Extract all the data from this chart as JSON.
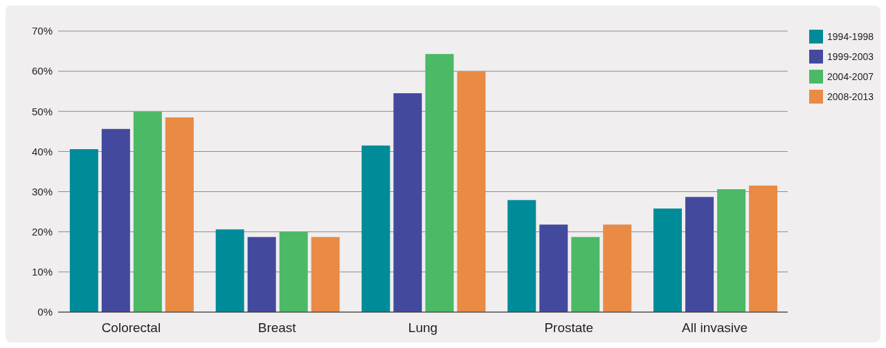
{
  "chart_data": {
    "type": "bar",
    "categories": [
      "Colorectal",
      "Breast",
      "Lung",
      "Prostate",
      "All invasive"
    ],
    "series": [
      {
        "name": "1994-1998",
        "color": "#008b99",
        "values": [
          40.6,
          20.6,
          41.5,
          27.9,
          25.8
        ]
      },
      {
        "name": "1999-2003",
        "color": "#434a9e",
        "values": [
          45.6,
          18.7,
          54.5,
          21.8,
          28.7
        ]
      },
      {
        "name": "2004-2007",
        "color": "#4bb966",
        "values": [
          49.9,
          20.0,
          64.3,
          18.7,
          30.6
        ]
      },
      {
        "name": "2008-2013",
        "color": "#e98a45",
        "values": [
          48.5,
          18.7,
          60.0,
          21.8,
          31.5
        ]
      }
    ],
    "ylim": [
      0,
      70
    ],
    "yticks": [
      {
        "value": 0,
        "label": "0%"
      },
      {
        "value": 10,
        "label": "10%"
      },
      {
        "value": 20,
        "label": "20%"
      },
      {
        "value": 30,
        "label": "30%"
      },
      {
        "value": 40,
        "label": "40%"
      },
      {
        "value": 50,
        "label": "50%"
      },
      {
        "value": 60,
        "label": "60%"
      },
      {
        "value": 70,
        "label": "70%"
      }
    ],
    "grid": "y",
    "legend": "top right"
  }
}
